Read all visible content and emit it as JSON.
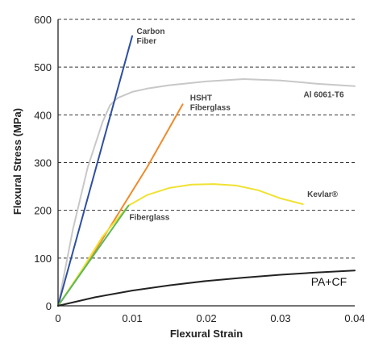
{
  "chart_data": {
    "type": "line",
    "xlabel": "Flexural Strain",
    "ylabel": "Flexural Stress (MPa)",
    "xlim": [
      0,
      0.04
    ],
    "ylim": [
      0,
      600
    ],
    "x_ticks": [
      {
        "value": 0,
        "label": "0"
      },
      {
        "value": 0.01,
        "label": "0.01"
      },
      {
        "value": 0.02,
        "label": "0.02"
      },
      {
        "value": 0.03,
        "label": "0.03"
      },
      {
        "value": 0.04,
        "label": "0.04"
      }
    ],
    "y_ticks": [
      {
        "value": 0,
        "label": "0"
      },
      {
        "value": 100,
        "label": "100"
      },
      {
        "value": 200,
        "label": "200"
      },
      {
        "value": 300,
        "label": "300"
      },
      {
        "value": 400,
        "label": "400"
      },
      {
        "value": 500,
        "label": "500"
      },
      {
        "value": 600,
        "label": "600"
      }
    ],
    "grid": "horizontal dashed",
    "series": [
      {
        "name": "Al 6061-T6",
        "color": "#c8c8c8",
        "x": [
          0,
          0.002,
          0.004,
          0.006,
          0.007,
          0.008,
          0.01,
          0.012,
          0.015,
          0.02,
          0.025,
          0.03,
          0.035,
          0.04
        ],
        "y": [
          0,
          160,
          290,
          385,
          420,
          435,
          448,
          455,
          462,
          470,
          475,
          472,
          465,
          460
        ]
      },
      {
        "name": "Carbon Fiber",
        "color": "#2e4fa0",
        "x": [
          0,
          0.01
        ],
        "y": [
          0,
          565
        ]
      },
      {
        "name": "HSHT Fiberglass",
        "color": "#f08a2a",
        "x": [
          0,
          0.004,
          0.008,
          0.012,
          0.0168
        ],
        "y": [
          0,
          90,
          190,
          290,
          422
        ]
      },
      {
        "name": "Kevlar®",
        "color": "#f0e232",
        "x": [
          0,
          0.003,
          0.006,
          0.0095,
          0.012,
          0.015,
          0.018,
          0.021,
          0.024,
          0.027,
          0.03,
          0.033
        ],
        "y": [
          0,
          70,
          145,
          210,
          232,
          247,
          254,
          255,
          252,
          242,
          225,
          213
        ]
      },
      {
        "name": "Fiberglass",
        "color": "#5cb85c",
        "x": [
          0,
          0.0095
        ],
        "y": [
          0,
          210
        ]
      },
      {
        "name": "PA+CF",
        "color": "#222222",
        "x": [
          0,
          0.005,
          0.01,
          0.015,
          0.02,
          0.025,
          0.03,
          0.035,
          0.04
        ],
        "y": [
          0,
          18,
          32,
          43,
          52,
          59,
          65,
          70,
          74
        ]
      }
    ],
    "labels": [
      {
        "series": "Carbon Fiber",
        "lines": [
          "Carbon",
          "Fiber"
        ],
        "x": 0.0106,
        "y": 570,
        "style": "bold"
      },
      {
        "series": "HSHT Fiberglass",
        "lines": [
          "HSHT",
          "Fiberglass"
        ],
        "x": 0.0178,
        "y": 430,
        "style": "bold"
      },
      {
        "series": "Al 6061-T6",
        "lines": [
          "Al 6061-T6"
        ],
        "x": 0.0331,
        "y": 437,
        "style": "bold"
      },
      {
        "series": "Kevlar®",
        "lines": [
          "Kevlar®"
        ],
        "x": 0.0336,
        "y": 228,
        "style": "bold"
      },
      {
        "series": "Fiberglass",
        "lines": [
          "Fiberglass"
        ],
        "x": 0.0096,
        "y": 180,
        "style": "bold"
      },
      {
        "series": "PA+CF",
        "lines": [
          "PA+CF"
        ],
        "x": 0.0341,
        "y": 42,
        "style": "plain"
      }
    ]
  }
}
